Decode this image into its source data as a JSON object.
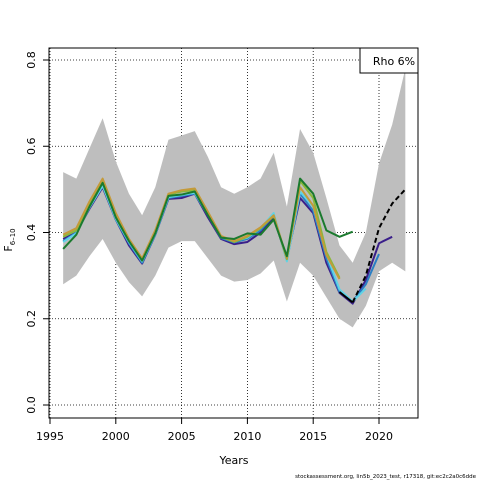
{
  "chart_data": {
    "type": "line",
    "xlabel": "Years",
    "ylabel_main": "F",
    "ylabel_sub": "6–10",
    "xlim": [
      1995,
      2023
    ],
    "ylim": [
      0,
      0.8
    ],
    "x_ticks": [
      1995,
      2000,
      2005,
      2010,
      2015,
      2020
    ],
    "y_ticks": [
      "0.0",
      "0.2",
      "0.4",
      "0.6",
      "0.8"
    ],
    "grid": true,
    "legend": {
      "placement": "top-right",
      "label": "Rho 6%"
    },
    "footer": "stockassessment.org, lin5b_2023_test, r17318, git:ec2c2a0c6dde",
    "ci_band": {
      "x": [
        1996,
        1997,
        1998,
        1999,
        2000,
        2001,
        2002,
        2003,
        2004,
        2005,
        2006,
        2007,
        2008,
        2009,
        2010,
        2011,
        2012,
        2013,
        2014,
        2015,
        2016,
        2017,
        2018,
        2019,
        2020,
        2021,
        2022
      ],
      "lower": [
        0.28,
        0.3,
        0.345,
        0.385,
        0.33,
        0.285,
        0.252,
        0.3,
        0.365,
        0.38,
        0.38,
        0.34,
        0.3,
        0.286,
        0.29,
        0.305,
        0.335,
        0.24,
        0.33,
        0.3,
        0.25,
        0.2,
        0.18,
        0.23,
        0.31,
        0.33,
        0.31
      ],
      "upper": [
        0.54,
        0.525,
        0.595,
        0.665,
        0.565,
        0.49,
        0.44,
        0.505,
        0.615,
        0.625,
        0.635,
        0.575,
        0.505,
        0.49,
        0.505,
        0.525,
        0.585,
        0.46,
        0.64,
        0.585,
        0.48,
        0.37,
        0.33,
        0.4,
        0.56,
        0.65,
        0.78
      ]
    },
    "series": [
      {
        "color": "#3a1f8a",
        "dashed": false,
        "x": [
          1996,
          1997,
          1998,
          1999,
          2000,
          2001,
          2002,
          2003,
          2004,
          2005,
          2006,
          2007,
          2008,
          2009,
          2010,
          2011,
          2012,
          2013,
          2014,
          2015,
          2016,
          2017,
          2018,
          2019,
          2020,
          2021
        ],
        "y": [
          0.385,
          0.4,
          0.455,
          0.505,
          0.43,
          0.37,
          0.328,
          0.395,
          0.478,
          0.48,
          0.49,
          0.435,
          0.385,
          0.373,
          0.378,
          0.4,
          0.435,
          0.34,
          0.48,
          0.445,
          0.33,
          0.26,
          0.235,
          0.29,
          0.375,
          0.39
        ]
      },
      {
        "color": "#2b7fc4",
        "dashed": false,
        "x": [
          1996,
          1997,
          1998,
          1999,
          2000,
          2001,
          2002,
          2003,
          2004,
          2005,
          2006,
          2007,
          2008,
          2009,
          2010,
          2011,
          2012,
          2013,
          2014,
          2015,
          2016,
          2017,
          2018,
          2019,
          2020
        ],
        "y": [
          0.38,
          0.4,
          0.46,
          0.51,
          0.43,
          0.375,
          0.33,
          0.395,
          0.48,
          0.485,
          0.49,
          0.44,
          0.387,
          0.377,
          0.385,
          0.405,
          0.44,
          0.335,
          0.49,
          0.45,
          0.34,
          0.262,
          0.24,
          0.28,
          0.35
        ]
      },
      {
        "color": "#5fd3e6",
        "dashed": false,
        "x": [
          1996,
          1997,
          1998,
          1999,
          2000,
          2001,
          2002,
          2003,
          2004,
          2005,
          2006,
          2007,
          2008,
          2009,
          2010,
          2011,
          2012,
          2013,
          2014,
          2015,
          2016,
          2017,
          2018,
          2019
        ],
        "y": [
          0.378,
          0.398,
          0.458,
          0.508,
          0.432,
          0.378,
          0.333,
          0.397,
          0.482,
          0.487,
          0.492,
          0.442,
          0.39,
          0.38,
          0.388,
          0.41,
          0.445,
          0.333,
          0.495,
          0.46,
          0.35,
          0.268,
          0.24,
          0.27
        ]
      },
      {
        "color": "#8ab83a",
        "dashed": false,
        "x": [
          1996,
          1997,
          1998,
          1999,
          2000,
          2001,
          2002,
          2003,
          2004,
          2005,
          2006,
          2007,
          2008,
          2009,
          2010,
          2011,
          2012,
          2013,
          2014,
          2015,
          2016,
          2017
        ],
        "y": [
          0.39,
          0.405,
          0.468,
          0.52,
          0.44,
          0.383,
          0.335,
          0.4,
          0.488,
          0.495,
          0.498,
          0.445,
          0.39,
          0.378,
          0.39,
          0.41,
          0.438,
          0.338,
          0.52,
          0.48,
          0.355,
          0.295
        ]
      },
      {
        "color": "#c49a3a",
        "dashed": false,
        "x": [
          1996,
          1997,
          1998,
          1999,
          2000,
          2001,
          2002,
          2003,
          2004,
          2005,
          2006,
          2007,
          2008,
          2009,
          2010,
          2011,
          2012,
          2013,
          2014,
          2015,
          2016,
          2017
        ],
        "y": [
          0.395,
          0.41,
          0.472,
          0.525,
          0.445,
          0.385,
          0.34,
          0.405,
          0.49,
          0.498,
          0.502,
          0.448,
          0.392,
          0.38,
          0.392,
          0.412,
          0.44,
          0.34,
          0.505,
          0.462,
          0.348,
          0.292
        ]
      },
      {
        "color": "#1b7a2e",
        "dashed": false,
        "x": [
          1996,
          1997,
          1998,
          1999,
          2000,
          2001,
          2002,
          2003,
          2004,
          2005,
          2006,
          2007,
          2008,
          2009,
          2010,
          2011,
          2012,
          2013,
          2014,
          2015,
          2016,
          2017,
          2018
        ],
        "y": [
          0.362,
          0.395,
          0.46,
          0.515,
          0.435,
          0.38,
          0.335,
          0.398,
          0.485,
          0.488,
          0.495,
          0.44,
          0.388,
          0.385,
          0.398,
          0.395,
          0.43,
          0.345,
          0.525,
          0.49,
          0.405,
          0.39,
          0.402
        ]
      },
      {
        "color": "#000000",
        "dashed": false,
        "x": [
          2017,
          2018
        ],
        "y": [
          0.262,
          0.238
        ]
      },
      {
        "color": "#000000",
        "dashed": true,
        "x": [
          2018,
          2019,
          2020,
          2021,
          2022
        ],
        "y": [
          0.238,
          0.3,
          0.41,
          0.467,
          0.5
        ]
      }
    ]
  }
}
